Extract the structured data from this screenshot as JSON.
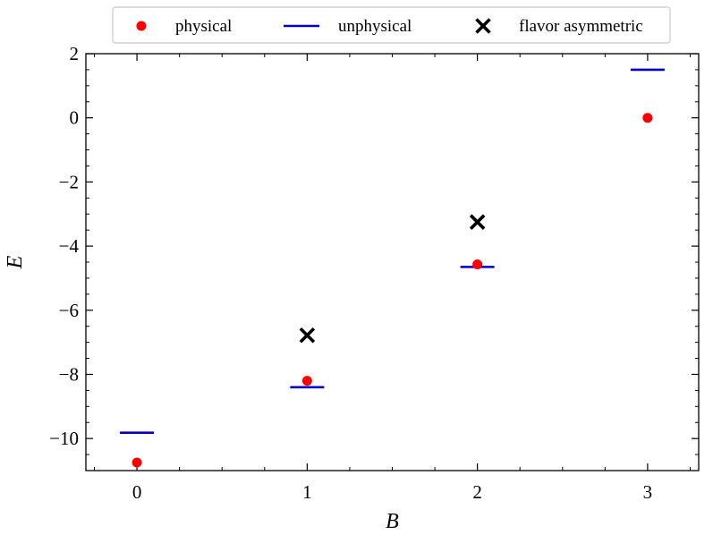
{
  "chart_data": {
    "type": "scatter",
    "xlabel": "B",
    "ylabel": "E",
    "xlim": [
      -0.3,
      3.3
    ],
    "ylim": [
      -11,
      2
    ],
    "xticks": [
      0,
      1,
      2,
      3
    ],
    "yticks": [
      2,
      0,
      -2,
      -4,
      -6,
      -8,
      -10
    ],
    "minor_y_step": 0.5,
    "minor_x_step": 0.25,
    "grid": false,
    "legend_position": "top-center",
    "series": [
      {
        "name": "physical",
        "marker": "circle",
        "color": "#ff0000",
        "points": [
          {
            "x": 0,
            "y": -10.75
          },
          {
            "x": 1,
            "y": -8.2
          },
          {
            "x": 2,
            "y": -4.57
          },
          {
            "x": 3,
            "y": 0.0
          }
        ]
      },
      {
        "name": "unphysical",
        "marker": "hline",
        "color": "#0000cc",
        "points": [
          {
            "x": 0,
            "y": -9.82
          },
          {
            "x": 1,
            "y": -8.4
          },
          {
            "x": 2,
            "y": -4.65
          },
          {
            "x": 3,
            "y": 1.5
          }
        ]
      },
      {
        "name": "flavor asymmetric",
        "marker": "cross",
        "color": "#000000",
        "points": [
          {
            "x": 1,
            "y": -6.78
          },
          {
            "x": 2,
            "y": -3.25
          }
        ]
      }
    ]
  }
}
